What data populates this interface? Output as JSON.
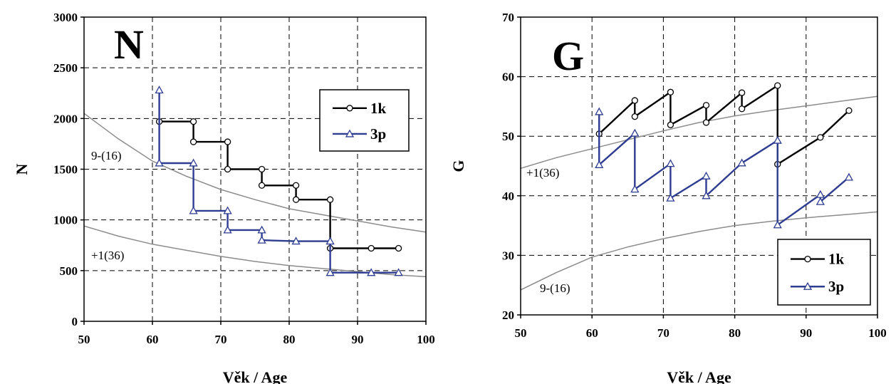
{
  "chart_data": [
    {
      "type": "line",
      "title": "N",
      "xlabel": "Věk / Age",
      "ylabel": "N",
      "xlim": [
        50,
        100
      ],
      "ylim": [
        0,
        3000
      ],
      "x_ticks": [
        "50",
        "60",
        "70",
        "80",
        "90",
        "100"
      ],
      "y_ticks": [
        "0",
        "500",
        "1000",
        "1500",
        "2000",
        "2500",
        "3000"
      ],
      "grid": true,
      "legend_position": "right-upper",
      "series": [
        {
          "name": "1k",
          "color": "#000000",
          "marker": "circle",
          "x": [
            61,
            66,
            66,
            71,
            71,
            76,
            76,
            81,
            81,
            86,
            86,
            92,
            96
          ],
          "y": [
            1970,
            1970,
            1770,
            1770,
            1500,
            1500,
            1340,
            1340,
            1200,
            1200,
            720,
            720,
            720
          ]
        },
        {
          "name": "3p",
          "color": "#2e3d91",
          "marker": "triangle",
          "x": [
            61,
            61,
            66,
            66,
            71,
            71,
            76,
            76,
            81,
            86,
            86,
            92,
            96
          ],
          "y": [
            2280,
            1560,
            1560,
            1090,
            1090,
            900,
            900,
            800,
            790,
            790,
            480,
            480,
            480
          ]
        }
      ],
      "reference_curves": [
        {
          "label": "9-(16)",
          "x": [
            50,
            55,
            60,
            65,
            70,
            75,
            80,
            85,
            90,
            95,
            100
          ],
          "y": [
            2050,
            1800,
            1580,
            1430,
            1300,
            1200,
            1110,
            1050,
            990,
            930,
            880
          ]
        },
        {
          "label": "+1(36)",
          "x": [
            50,
            55,
            60,
            65,
            70,
            75,
            80,
            85,
            90,
            95,
            100
          ],
          "y": [
            940,
            840,
            760,
            700,
            640,
            590,
            550,
            520,
            490,
            460,
            440
          ]
        }
      ]
    },
    {
      "type": "line",
      "title": "G",
      "xlabel": "Věk / Age",
      "ylabel": "G",
      "xlim": [
        50,
        100
      ],
      "ylim": [
        20,
        70
      ],
      "x_ticks": [
        "50",
        "60",
        "70",
        "80",
        "90",
        "100"
      ],
      "y_ticks": [
        "20",
        "30",
        "40",
        "50",
        "60",
        "70"
      ],
      "grid": true,
      "legend_position": "bottom-right",
      "series": [
        {
          "name": "1k",
          "color": "#000000",
          "marker": "circle",
          "x": [
            61,
            66,
            66,
            71,
            71,
            76,
            76,
            81,
            81,
            86,
            86,
            92,
            96
          ],
          "y": [
            50.4,
            56.0,
            53.3,
            57.4,
            51.9,
            55.2,
            52.3,
            57.3,
            54.6,
            58.5,
            45.3,
            49.8,
            54.3
          ]
        },
        {
          "name": "3p",
          "color": "#2e3d91",
          "marker": "triangle",
          "x": [
            61,
            61,
            66,
            66,
            71,
            71,
            76,
            76,
            81,
            86,
            86,
            92,
            92,
            96
          ],
          "y": [
            54.1,
            45.2,
            50.5,
            41.1,
            45.4,
            39.6,
            43.3,
            40.0,
            45.5,
            49.3,
            35.1,
            40.2,
            39.0,
            43.1
          ]
        }
      ],
      "reference_curves": [
        {
          "label": "+1(36)",
          "x": [
            50,
            55,
            60,
            65,
            70,
            75,
            80,
            85,
            90,
            95,
            100
          ],
          "y": [
            44.6,
            46.4,
            47.9,
            49.4,
            50.9,
            52.3,
            53.4,
            54.3,
            55.1,
            55.9,
            56.7
          ]
        },
        {
          "label": "9-(16)",
          "x": [
            50,
            55,
            60,
            65,
            70,
            75,
            80,
            85,
            90,
            95,
            100
          ],
          "y": [
            24.2,
            27.1,
            29.7,
            31.4,
            32.8,
            34.0,
            35.0,
            35.7,
            36.3,
            36.8,
            37.3
          ]
        }
      ]
    }
  ]
}
